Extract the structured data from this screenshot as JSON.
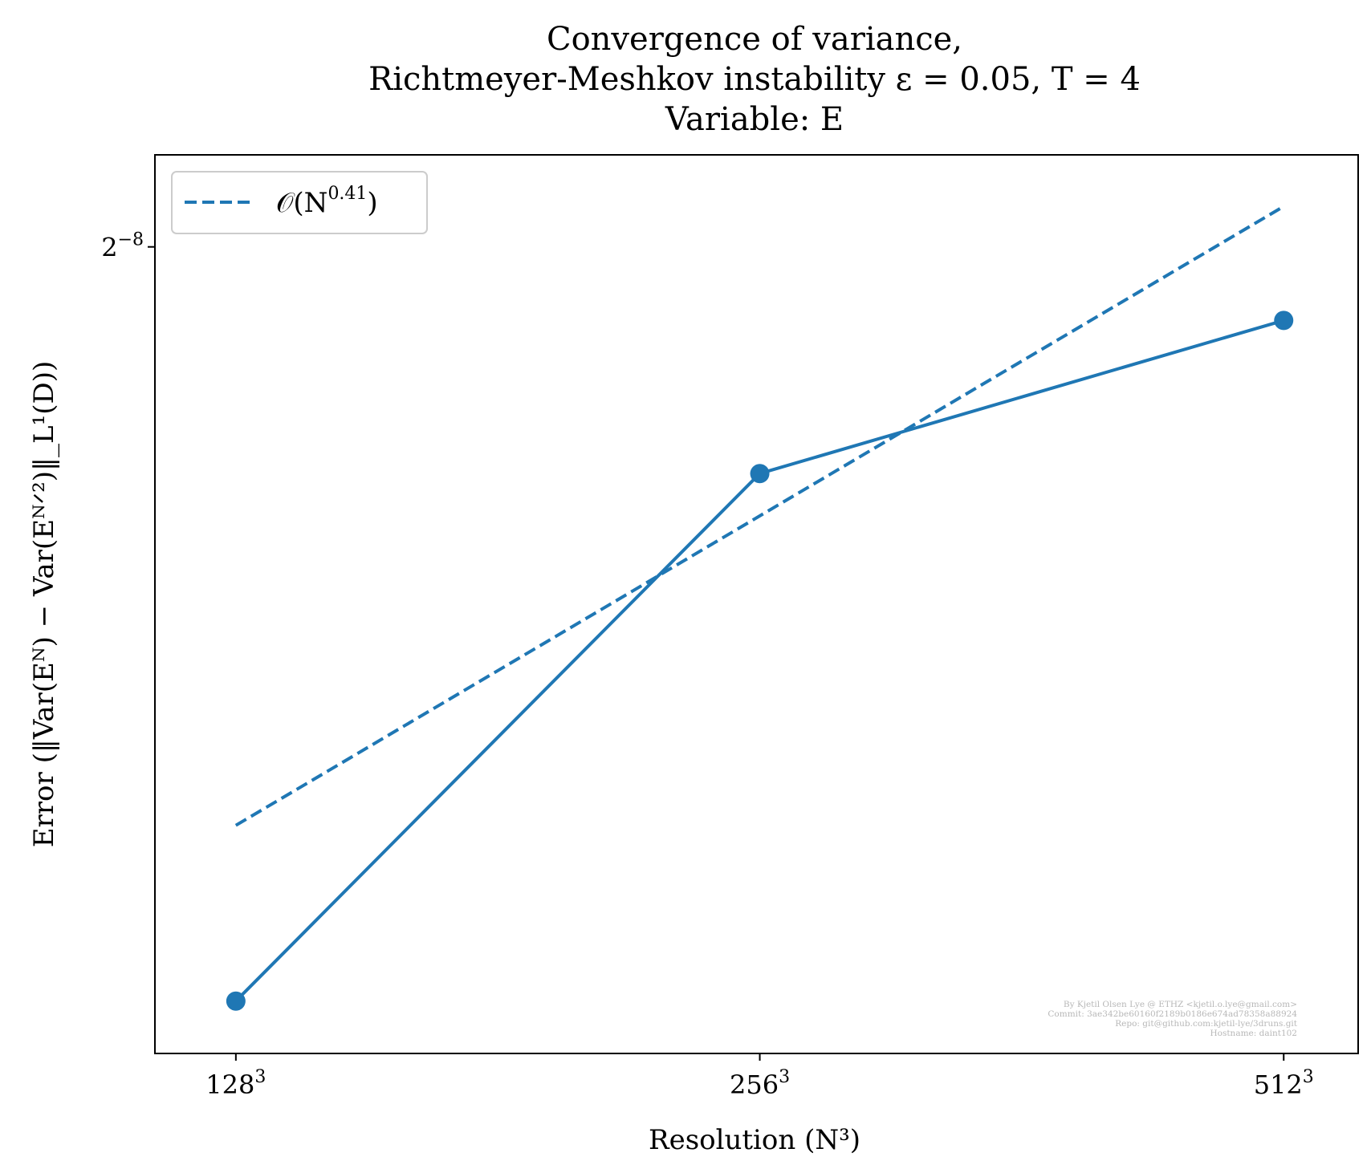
{
  "chart_data": {
    "type": "line",
    "title": [
      "Convergence of variance,",
      "Richtmeyer-Meshkov instability ε = 0.05, T = 4",
      "Variable: E"
    ],
    "xlabel": "Resolution (N³)",
    "ylabel": "Error (‖Var(Eᴺ) − Var(Eᴺᐟ²)‖_L¹(D))",
    "xscale": "log2",
    "yscale": "log2",
    "x_ticks": [
      {
        "value": 128,
        "base": "128",
        "exp": "3"
      },
      {
        "value": 256,
        "base": "256",
        "exp": "3"
      },
      {
        "value": 512,
        "base": "512",
        "exp": "3"
      }
    ],
    "y_ticks": [
      {
        "value": 0.00390625,
        "base": "2",
        "exp": "−8"
      }
    ],
    "xlim": [
      115,
      565
    ],
    "ylim": [
      0.00179,
      0.00427
    ],
    "series": [
      {
        "style": "solid-with-markers",
        "color": "#1f77b4",
        "x": [
          128,
          256,
          512
        ],
        "y": [
          0.001883,
          0.003137,
          0.003638
        ]
      },
      {
        "name": "𝒪(N^0.41)",
        "style": "dashed",
        "color": "#1f77b4",
        "x": [
          128,
          512
        ],
        "y": [
          0.002232,
          0.004062
        ]
      }
    ],
    "legend": {
      "position": "top-left",
      "entries": [
        {
          "label": "𝒪(N",
          "exp": "0.41",
          "suffix": ")"
        }
      ]
    },
    "grid": false
  },
  "watermark": {
    "lines": [
      "By Kjetil Olsen Lye @ ETHZ <kjetil.o.lye@gmail.com>",
      "Commit: 3ae342be60160f2189b0186e674ad78358a88924",
      "Repo: git@github.com:kjetil-lye/3druns.git",
      "Hostname: daint102"
    ]
  }
}
